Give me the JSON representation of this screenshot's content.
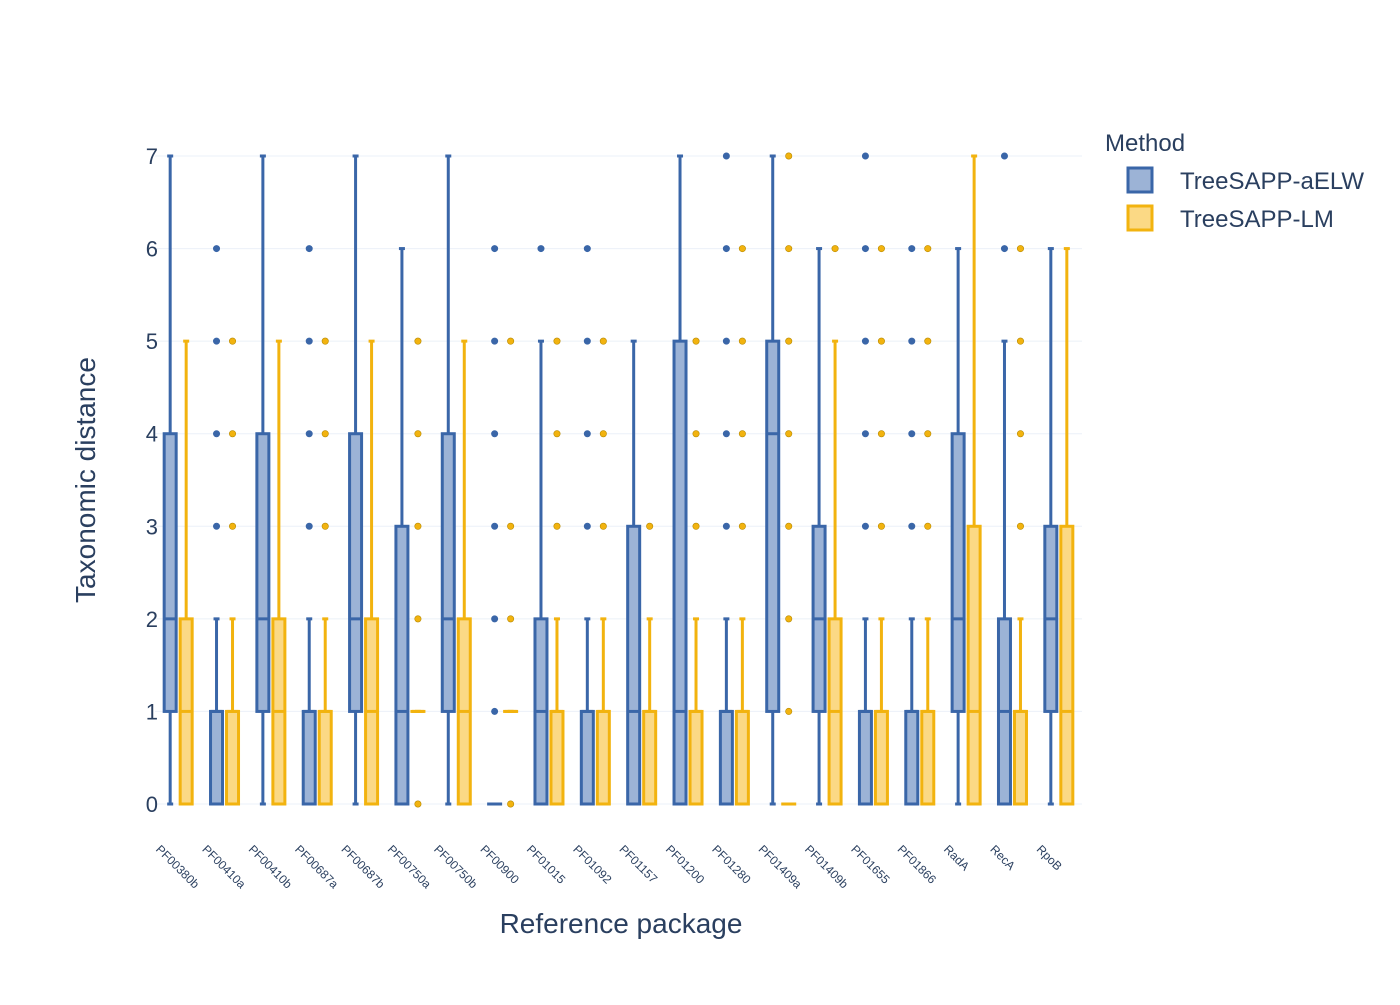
{
  "chart_data": {
    "type": "box",
    "xlabel": "Reference package",
    "ylabel": "Taxonomic distance",
    "ylim": [
      0,
      7
    ],
    "yticks": [
      0,
      1,
      2,
      3,
      4,
      5,
      6,
      7
    ],
    "grid": true,
    "legend": {
      "title": "Method",
      "placement": "top-right"
    },
    "categories": [
      "PF00380b",
      "PF00410a",
      "PF00410b",
      "PF00687a",
      "PF00687b",
      "PF00750a",
      "PF00750b",
      "PF00900",
      "PF01015",
      "PF01092",
      "PF01157",
      "PF01200",
      "PF01280",
      "PF01409a",
      "PF01409b",
      "PF01655",
      "PF01866",
      "RadA",
      "RecA",
      "RpoB"
    ],
    "series": [
      {
        "name": "TreeSAPP-aELW",
        "color": "#3a66a8",
        "fill": "#9cb3d6",
        "boxes": [
          {
            "min": 0,
            "q1": 1,
            "median": 2,
            "q3": 4,
            "max": 7,
            "outliers": []
          },
          {
            "min": 0,
            "q1": 0,
            "median": 1,
            "q3": 1,
            "max": 2,
            "outliers": [
              3,
              4,
              5,
              6
            ]
          },
          {
            "min": 0,
            "q1": 1,
            "median": 2,
            "q3": 4,
            "max": 7,
            "outliers": []
          },
          {
            "min": 0,
            "q1": 0,
            "median": 1,
            "q3": 1,
            "max": 2,
            "outliers": [
              3,
              4,
              5,
              6
            ]
          },
          {
            "min": 0,
            "q1": 1,
            "median": 2,
            "q3": 4,
            "max": 7,
            "outliers": []
          },
          {
            "min": 0,
            "q1": 0,
            "median": 1,
            "q3": 3,
            "max": 6,
            "outliers": []
          },
          {
            "min": 0,
            "q1": 1,
            "median": 2,
            "q3": 4,
            "max": 7,
            "outliers": []
          },
          {
            "min": 0,
            "q1": 0,
            "median": 0,
            "q3": 0,
            "max": 0,
            "outliers": [
              1,
              2,
              3,
              4,
              5,
              6
            ]
          },
          {
            "min": 0,
            "q1": 0,
            "median": 1,
            "q3": 2,
            "max": 5,
            "outliers": [
              6
            ]
          },
          {
            "min": 0,
            "q1": 0,
            "median": 1,
            "q3": 1,
            "max": 2,
            "outliers": [
              3,
              4,
              5,
              6
            ]
          },
          {
            "min": 0,
            "q1": 0,
            "median": 1,
            "q3": 3,
            "max": 5,
            "outliers": []
          },
          {
            "min": 0,
            "q1": 0,
            "median": 1,
            "q3": 5,
            "max": 7,
            "outliers": []
          },
          {
            "min": 0,
            "q1": 0,
            "median": 1,
            "q3": 1,
            "max": 2,
            "outliers": [
              3,
              4,
              5,
              6,
              7
            ]
          },
          {
            "min": 0,
            "q1": 1,
            "median": 4,
            "q3": 5,
            "max": 7,
            "outliers": []
          },
          {
            "min": 0,
            "q1": 1,
            "median": 2,
            "q3": 3,
            "max": 6,
            "outliers": []
          },
          {
            "min": 0,
            "q1": 0,
            "median": 1,
            "q3": 1,
            "max": 2,
            "outliers": [
              3,
              4,
              5,
              6,
              7
            ]
          },
          {
            "min": 0,
            "q1": 0,
            "median": 1,
            "q3": 1,
            "max": 2,
            "outliers": [
              3,
              4,
              5,
              6
            ]
          },
          {
            "min": 0,
            "q1": 1,
            "median": 2,
            "q3": 4,
            "max": 6,
            "outliers": []
          },
          {
            "min": 0,
            "q1": 0,
            "median": 1,
            "q3": 2,
            "max": 5,
            "outliers": [
              6,
              7
            ]
          },
          {
            "min": 0,
            "q1": 1,
            "median": 2,
            "q3": 3,
            "max": 6,
            "outliers": []
          }
        ]
      },
      {
        "name": "TreeSAPP-LM",
        "color": "#f2b30f",
        "fill": "#fbd985",
        "boxes": [
          {
            "min": 0,
            "q1": 0,
            "median": 1,
            "q3": 2,
            "max": 5,
            "outliers": []
          },
          {
            "min": 0,
            "q1": 0,
            "median": 1,
            "q3": 1,
            "max": 2,
            "outliers": [
              3,
              4,
              5
            ]
          },
          {
            "min": 0,
            "q1": 0,
            "median": 1,
            "q3": 2,
            "max": 5,
            "outliers": []
          },
          {
            "min": 0,
            "q1": 0,
            "median": 1,
            "q3": 1,
            "max": 2,
            "outliers": [
              3,
              4,
              5
            ]
          },
          {
            "min": 0,
            "q1": 0,
            "median": 1,
            "q3": 2,
            "max": 5,
            "outliers": []
          },
          {
            "min": 1,
            "q1": 1,
            "median": 1,
            "q3": 1,
            "max": 1,
            "outliers": [
              0,
              2,
              3,
              4,
              5
            ]
          },
          {
            "min": 0,
            "q1": 0,
            "median": 1,
            "q3": 2,
            "max": 5,
            "outliers": []
          },
          {
            "min": 1,
            "q1": 1,
            "median": 1,
            "q3": 1,
            "max": 1,
            "outliers": [
              0,
              2,
              3,
              5
            ]
          },
          {
            "min": 0,
            "q1": 0,
            "median": 1,
            "q3": 1,
            "max": 2,
            "outliers": [
              3,
              4,
              5
            ]
          },
          {
            "min": 0,
            "q1": 0,
            "median": 1,
            "q3": 1,
            "max": 2,
            "outliers": [
              3,
              4,
              5
            ]
          },
          {
            "min": 0,
            "q1": 0,
            "median": 1,
            "q3": 1,
            "max": 2,
            "outliers": [
              3
            ]
          },
          {
            "min": 0,
            "q1": 0,
            "median": 1,
            "q3": 1,
            "max": 2,
            "outliers": [
              3,
              4,
              5
            ]
          },
          {
            "min": 0,
            "q1": 0,
            "median": 1,
            "q3": 1,
            "max": 2,
            "outliers": [
              3,
              4,
              5,
              6
            ]
          },
          {
            "min": 0,
            "q1": 0,
            "median": 0,
            "q3": 0,
            "max": 0,
            "outliers": [
              1,
              2,
              3,
              4,
              5,
              6,
              7
            ]
          },
          {
            "min": 0,
            "q1": 0,
            "median": 1,
            "q3": 2,
            "max": 5,
            "outliers": [
              6
            ]
          },
          {
            "min": 0,
            "q1": 0,
            "median": 1,
            "q3": 1,
            "max": 2,
            "outliers": [
              3,
              4,
              5,
              6
            ]
          },
          {
            "min": 0,
            "q1": 0,
            "median": 1,
            "q3": 1,
            "max": 2,
            "outliers": [
              3,
              4,
              5,
              6
            ]
          },
          {
            "min": 0,
            "q1": 0,
            "median": 1,
            "q3": 3,
            "max": 7,
            "outliers": []
          },
          {
            "min": 0,
            "q1": 0,
            "median": 1,
            "q3": 1,
            "max": 2,
            "outliers": [
              3,
              4,
              5,
              6
            ]
          },
          {
            "min": 0,
            "q1": 0,
            "median": 1,
            "q3": 3,
            "max": 6,
            "outliers": []
          }
        ]
      }
    ]
  }
}
